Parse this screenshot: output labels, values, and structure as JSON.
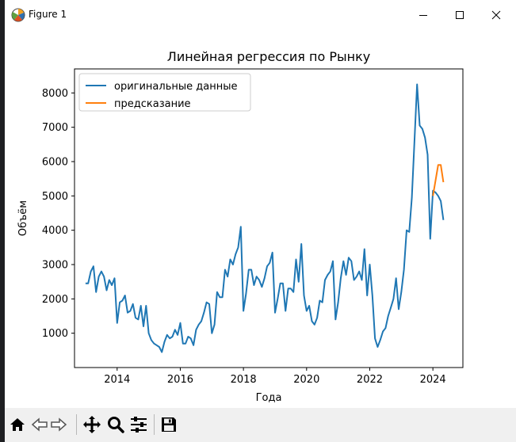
{
  "window": {
    "title": "Figure 1"
  },
  "toolbar": {
    "icons": [
      "home-icon",
      "back-icon",
      "forward-icon",
      "pan-icon",
      "zoom-icon",
      "configure-icon",
      "save-icon"
    ]
  },
  "colors": {
    "series_original": "#1f77b4",
    "series_prediction": "#ff7f0e"
  },
  "chart_data": {
    "type": "line",
    "title": "Линейная регрессия по Рынку",
    "xlabel": "Года",
    "ylabel": "Объём",
    "xlim": [
      2012.65,
      2024.95
    ],
    "ylim": [
      0,
      8700
    ],
    "xticks": [
      "2014",
      "2016",
      "2018",
      "2020",
      "2022",
      "2024"
    ],
    "yticks": [
      "1000",
      "2000",
      "3000",
      "4000",
      "5000",
      "6000",
      "7000",
      "8000"
    ],
    "grid": false,
    "legend_position": "top-left",
    "series": [
      {
        "name": "оригинальные данные",
        "x": [
          2013.0,
          2013.083,
          2013.167,
          2013.25,
          2013.333,
          2013.417,
          2013.5,
          2013.583,
          2013.667,
          2013.75,
          2013.833,
          2013.917,
          2014.0,
          2014.083,
          2014.167,
          2014.25,
          2014.333,
          2014.417,
          2014.5,
          2014.583,
          2014.667,
          2014.75,
          2014.833,
          2014.917,
          2015.0,
          2015.083,
          2015.167,
          2015.25,
          2015.333,
          2015.417,
          2015.5,
          2015.583,
          2015.667,
          2015.75,
          2015.833,
          2015.917,
          2016.0,
          2016.083,
          2016.167,
          2016.25,
          2016.333,
          2016.417,
          2016.5,
          2016.583,
          2016.667,
          2016.75,
          2016.833,
          2016.917,
          2017.0,
          2017.083,
          2017.167,
          2017.25,
          2017.333,
          2017.417,
          2017.5,
          2017.583,
          2017.667,
          2017.75,
          2017.833,
          2017.917,
          2018.0,
          2018.083,
          2018.167,
          2018.25,
          2018.333,
          2018.417,
          2018.5,
          2018.583,
          2018.667,
          2018.75,
          2018.833,
          2018.917,
          2019.0,
          2019.083,
          2019.167,
          2019.25,
          2019.333,
          2019.417,
          2019.5,
          2019.583,
          2019.667,
          2019.75,
          2019.833,
          2019.917,
          2020.0,
          2020.083,
          2020.167,
          2020.25,
          2020.333,
          2020.417,
          2020.5,
          2020.583,
          2020.667,
          2020.75,
          2020.833,
          2020.917,
          2021.0,
          2021.083,
          2021.167,
          2021.25,
          2021.333,
          2021.417,
          2021.5,
          2021.583,
          2021.667,
          2021.75,
          2021.833,
          2021.917,
          2022.0,
          2022.083,
          2022.167,
          2022.25,
          2022.333,
          2022.417,
          2022.5,
          2022.583,
          2022.667,
          2022.75,
          2022.833,
          2022.917,
          2023.0,
          2023.083,
          2023.167,
          2023.25,
          2023.333,
          2023.417,
          2023.5,
          2023.583,
          2023.667,
          2023.75,
          2023.833,
          2023.917,
          2024.0,
          2024.083,
          2024.167,
          2024.25,
          2024.333
        ],
        "values": [
          2450,
          2450,
          2800,
          2950,
          2200,
          2650,
          2800,
          2650,
          2250,
          2550,
          2400,
          2600,
          1300,
          1900,
          1950,
          2100,
          1600,
          1650,
          1850,
          1450,
          1400,
          1800,
          1200,
          1800,
          1000,
          800,
          700,
          650,
          600,
          450,
          750,
          950,
          850,
          900,
          1100,
          950,
          1300,
          700,
          700,
          900,
          850,
          650,
          1100,
          1250,
          1350,
          1600,
          1900,
          1850,
          1000,
          1250,
          2200,
          2050,
          2050,
          2850,
          2650,
          3150,
          3000,
          3300,
          3500,
          4100,
          1650,
          2150,
          2850,
          2850,
          2400,
          2650,
          2550,
          2350,
          2600,
          2950,
          3050,
          3350,
          1600,
          2000,
          2450,
          2450,
          1650,
          2300,
          2300,
          2200,
          3150,
          2500,
          3600,
          2100,
          1650,
          1800,
          1350,
          1250,
          1450,
          1950,
          1900,
          2550,
          2700,
          2800,
          3100,
          1400,
          1900,
          2600,
          3100,
          2700,
          3200,
          3100,
          2550,
          2650,
          2800,
          2550,
          3450,
          2100,
          3000,
          2100,
          850,
          600,
          800,
          1050,
          1150,
          1500,
          1750,
          2000,
          2600,
          1700,
          2200,
          2850,
          4000,
          3950,
          4950,
          6600,
          8250,
          7050,
          6950,
          6700,
          6200,
          3750,
          5150,
          5100,
          5000,
          4850,
          4300
        ]
      },
      {
        "name": "предсказание",
        "x": [
          2024.0,
          2024.083,
          2024.167,
          2024.25,
          2024.333
        ],
        "values": [
          5000,
          5450,
          5900,
          5900,
          5400
        ]
      }
    ]
  }
}
